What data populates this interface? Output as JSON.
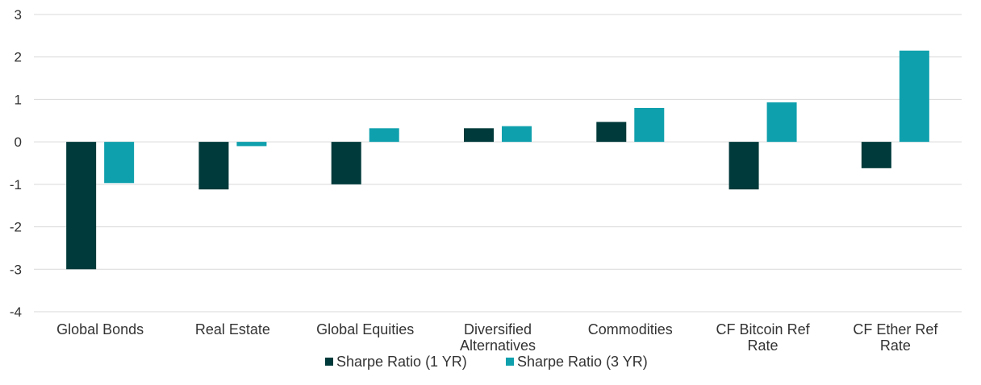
{
  "chart_data": {
    "type": "bar",
    "title": "",
    "xlabel": "",
    "ylabel": "",
    "ylim": [
      -4,
      3
    ],
    "yticks": [
      3,
      2,
      1,
      0,
      -1,
      -2,
      -3,
      -4
    ],
    "grid": true,
    "legend_position": "bottom",
    "categories": [
      [
        "Global Bonds"
      ],
      [
        "Real Estate"
      ],
      [
        "Global Equities"
      ],
      [
        "Diversified",
        "Alternatives"
      ],
      [
        "Commodities"
      ],
      [
        "CF Bitcoin Ref",
        "Rate"
      ],
      [
        "CF Ether Ref",
        "Rate"
      ]
    ],
    "series": [
      {
        "name": "Sharpe Ratio (1 YR)",
        "color": "#003a3a",
        "values": [
          -3.0,
          -1.12,
          -1.0,
          0.32,
          0.47,
          -1.12,
          -0.62
        ]
      },
      {
        "name": "Sharpe Ratio (3 YR)",
        "color": "#0fa0ad",
        "values": [
          -0.97,
          -0.1,
          0.32,
          0.37,
          0.8,
          0.93,
          2.15
        ]
      }
    ]
  }
}
